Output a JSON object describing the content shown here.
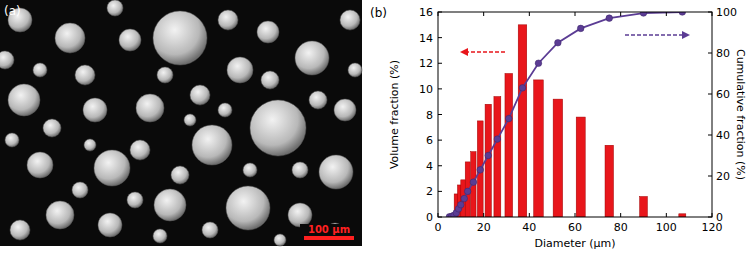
{
  "micrograph": {
    "label": "(a)",
    "scale_bar": "100 μm"
  },
  "chart_data": {
    "type": "bar",
    "panel": "(b)",
    "x_label": "Diameter (μm)",
    "y_label": "Volume fraction (%)",
    "y2_label": "Cumulative fraction (%)",
    "xlim": [
      0,
      120
    ],
    "xticks": [
      0,
      20,
      40,
      60,
      80,
      100,
      120
    ],
    "ylim": [
      0,
      16
    ],
    "yticks": [
      0,
      2,
      4,
      6,
      8,
      10,
      12,
      14,
      16
    ],
    "y2lim": [
      0,
      100
    ],
    "y2ticks": [
      0,
      20,
      40,
      60,
      80,
      100
    ],
    "series": [
      {
        "type": "bar",
        "color": "#e8161b",
        "x": [
          8,
          9.5,
          11,
          13,
          15.5,
          18.5,
          22,
          26,
          31,
          37,
          44,
          52.5,
          62.5,
          75,
          90,
          107
        ],
        "values": [
          1.8,
          2.5,
          2.9,
          4.3,
          5.1,
          7.5,
          8.8,
          9.4,
          11.2,
          15.0,
          10.7,
          9.2,
          7.8,
          5.6,
          1.6,
          0.25
        ]
      },
      {
        "type": "line",
        "axis": "y2",
        "color": "#5b3c94",
        "marker": "circle",
        "x": [
          5,
          6,
          7,
          8,
          9,
          10,
          11.5,
          13,
          15.5,
          18.5,
          22,
          26,
          31,
          37,
          44,
          52.5,
          62.5,
          75,
          90,
          107
        ],
        "values": [
          0.1,
          0.3,
          0.8,
          2,
          4,
          6,
          9,
          12.5,
          17,
          23,
          30,
          38,
          48,
          63,
          75,
          85,
          92,
          97,
          99.5,
          100
        ]
      }
    ]
  }
}
